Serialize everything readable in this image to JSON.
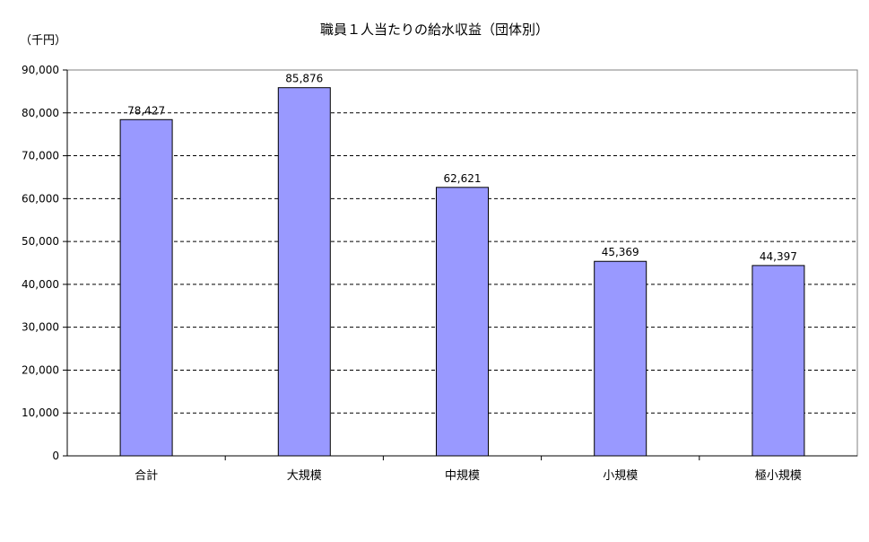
{
  "chart_data": {
    "type": "bar",
    "title": "職員１人当たりの給水収益（団体別）",
    "unit": "（千円）",
    "categories": [
      "合計",
      "大規模",
      "中規模",
      "小規模",
      "極小規模"
    ],
    "values": [
      78427,
      85876,
      62621,
      45369,
      44397
    ],
    "value_labels": [
      "78,427",
      "85,876",
      "62,621",
      "45,369",
      "44,397"
    ],
    "ylim": [
      0,
      90000
    ],
    "yticks": [
      0,
      10000,
      20000,
      30000,
      40000,
      50000,
      60000,
      70000,
      80000,
      90000
    ],
    "ytick_labels": [
      "0",
      "10,000",
      "20,000",
      "30,000",
      "40,000",
      "50,000",
      "60,000",
      "70,000",
      "80,000",
      "90,000"
    ],
    "grid": "dashed horizontal",
    "legend": "none",
    "bar_color": "#9999ff"
  }
}
